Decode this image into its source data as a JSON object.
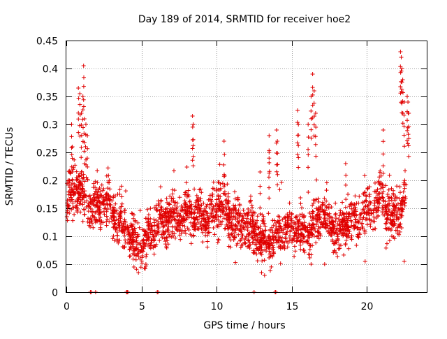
{
  "chart_data": {
    "type": "scatter",
    "title": "Day 189 of 2014, SRMTID for receiver hoe2",
    "xlabel": "GPS time / hours",
    "ylabel": "SRMTID / TECUs",
    "xlim": [
      0,
      24
    ],
    "ylim": [
      0,
      0.45
    ],
    "xticks": [
      0,
      5,
      10,
      15,
      20
    ],
    "xtick_labels": [
      "0",
      "5",
      "10",
      "15",
      "20"
    ],
    "yticks": [
      0,
      0.05,
      0.1,
      0.15,
      0.2,
      0.25,
      0.3,
      0.35,
      0.4,
      0.45
    ],
    "ytick_labels": [
      "0",
      "0.05",
      "0.1",
      "0.15",
      "0.2",
      "0.25",
      "0.3",
      "0.35",
      "0.4",
      "0.45"
    ],
    "grid": true,
    "marker": "+",
    "color": "#e00000",
    "series": [
      {
        "name": "SRMTID",
        "description": "approximately 2500 points; envelope and spike values estimated from the axes",
        "baseline": [
          [
            0.0,
            0.15
          ],
          [
            0.5,
            0.19
          ],
          [
            1.0,
            0.18
          ],
          [
            1.5,
            0.16
          ],
          [
            2.0,
            0.15
          ],
          [
            2.5,
            0.16
          ],
          [
            3.0,
            0.15
          ],
          [
            3.5,
            0.13
          ],
          [
            4.0,
            0.11
          ],
          [
            4.5,
            0.09
          ],
          [
            5.0,
            0.08
          ],
          [
            5.5,
            0.1
          ],
          [
            6.0,
            0.12
          ],
          [
            6.5,
            0.13
          ],
          [
            7.0,
            0.13
          ],
          [
            7.5,
            0.13
          ],
          [
            8.0,
            0.14
          ],
          [
            8.5,
            0.14
          ],
          [
            9.0,
            0.13
          ],
          [
            9.5,
            0.13
          ],
          [
            10.0,
            0.15
          ],
          [
            10.5,
            0.15
          ],
          [
            11.0,
            0.13
          ],
          [
            11.5,
            0.12
          ],
          [
            12.0,
            0.12
          ],
          [
            12.5,
            0.11
          ],
          [
            13.0,
            0.09
          ],
          [
            13.5,
            0.09
          ],
          [
            14.0,
            0.1
          ],
          [
            14.5,
            0.11
          ],
          [
            15.0,
            0.12
          ],
          [
            15.5,
            0.11
          ],
          [
            16.0,
            0.1
          ],
          [
            16.5,
            0.12
          ],
          [
            17.0,
            0.14
          ],
          [
            17.5,
            0.12
          ],
          [
            18.0,
            0.1
          ],
          [
            18.5,
            0.12
          ],
          [
            19.0,
            0.13
          ],
          [
            19.5,
            0.13
          ],
          [
            20.0,
            0.14
          ],
          [
            20.5,
            0.15
          ],
          [
            21.0,
            0.17
          ],
          [
            21.5,
            0.13
          ],
          [
            22.0,
            0.14
          ],
          [
            22.5,
            0.16
          ]
        ],
        "spikes": [
          [
            0.35,
            0.3
          ],
          [
            0.4,
            0.26
          ],
          [
            0.8,
            0.365
          ],
          [
            0.9,
            0.355
          ],
          [
            1.0,
            0.32
          ],
          [
            1.1,
            0.35
          ],
          [
            1.15,
            0.405
          ],
          [
            1.2,
            0.31
          ],
          [
            1.3,
            0.3
          ],
          [
            1.4,
            0.28
          ],
          [
            8.4,
            0.315
          ],
          [
            8.45,
            0.3
          ],
          [
            10.5,
            0.27
          ],
          [
            12.9,
            0.215
          ],
          [
            13.5,
            0.25
          ],
          [
            13.5,
            0.28
          ],
          [
            14.0,
            0.29
          ],
          [
            14.05,
            0.27
          ],
          [
            15.4,
            0.325
          ],
          [
            15.45,
            0.3
          ],
          [
            16.1,
            0.3
          ],
          [
            16.3,
            0.35
          ],
          [
            16.4,
            0.39
          ],
          [
            16.5,
            0.36
          ],
          [
            16.6,
            0.32
          ],
          [
            18.6,
            0.23
          ],
          [
            21.1,
            0.29
          ],
          [
            22.25,
            0.43
          ],
          [
            22.3,
            0.42
          ],
          [
            22.35,
            0.4
          ],
          [
            22.4,
            0.38
          ],
          [
            22.5,
            0.34
          ],
          [
            22.7,
            0.35
          ],
          [
            22.75,
            0.34
          ],
          [
            22.8,
            0.32
          ]
        ],
        "lows": [
          [
            4.5,
            0.045
          ],
          [
            4.8,
            0.035
          ],
          [
            5.3,
            0.05
          ],
          [
            13.0,
            0.035
          ],
          [
            13.2,
            0.03
          ],
          [
            16.3,
            0.05
          ],
          [
            17.2,
            0.05
          ],
          [
            19.9,
            0.055
          ],
          [
            22.5,
            0.055
          ]
        ],
        "zero_points": [
          1.6,
          1.65,
          1.95,
          4.0,
          4.05,
          4.1,
          6.05,
          6.1,
          12.5,
          13.9,
          13.95
        ]
      }
    ]
  }
}
